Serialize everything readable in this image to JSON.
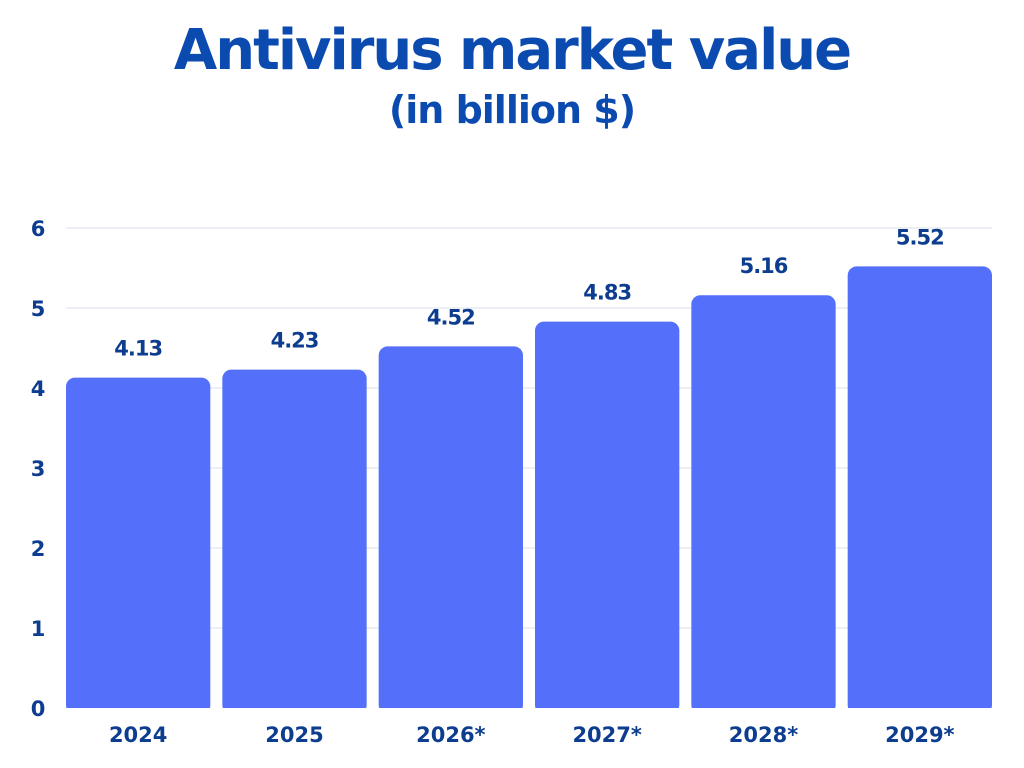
{
  "chart_data": {
    "type": "bar",
    "title": "Antivirus market value",
    "subtitle": "(in billion $)",
    "categories": [
      "2024",
      "2025",
      "2026*",
      "2027*",
      "2028*",
      "2029*"
    ],
    "values": [
      4.13,
      4.23,
      4.52,
      4.83,
      5.16,
      5.52
    ],
    "data_labels": [
      "4.13",
      "4.23",
      "4.52",
      "4.83",
      "5.16",
      "5.52"
    ],
    "ylim": [
      0,
      6
    ],
    "yticks": [
      0,
      1,
      2,
      3,
      4,
      5,
      6
    ],
    "grid": true,
    "colors": {
      "bar": "#5470fb",
      "title": "#0b4bb0",
      "text": "#0d3d8f",
      "grid": "#e6eaf0"
    }
  }
}
